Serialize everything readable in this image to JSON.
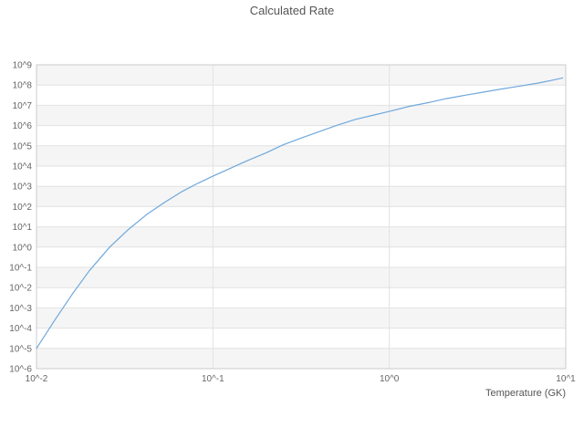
{
  "chart_data": {
    "type": "line",
    "title": "Calculated Rate",
    "xlabel": "Temperature (GK)",
    "ylabel": "",
    "x_scale": "log",
    "y_scale": "log",
    "xlim": [
      0.01,
      10
    ],
    "ylim_exp": [
      -6,
      9
    ],
    "grid": true,
    "legend": "none",
    "x_ticks": [
      {
        "value": 0.01,
        "label": "10^-2"
      },
      {
        "value": 0.1,
        "label": "10^-1"
      },
      {
        "value": 1,
        "label": "10^0"
      },
      {
        "value": 10,
        "label": "10^1"
      }
    ],
    "y_ticks": [
      {
        "exp": 9,
        "label": "10^9"
      },
      {
        "exp": 8,
        "label": "10^8"
      },
      {
        "exp": 7,
        "label": "10^7"
      },
      {
        "exp": 6,
        "label": "10^6"
      },
      {
        "exp": 5,
        "label": "10^5"
      },
      {
        "exp": 4,
        "label": "10^4"
      },
      {
        "exp": 3,
        "label": "10^3"
      },
      {
        "exp": 2,
        "label": "10^2"
      },
      {
        "exp": 1,
        "label": "10^1"
      },
      {
        "exp": 0,
        "label": "10^0"
      },
      {
        "exp": -1,
        "label": "10^-1"
      },
      {
        "exp": -2,
        "label": "10^-2"
      },
      {
        "exp": -3,
        "label": "10^-3"
      },
      {
        "exp": -4,
        "label": "10^-4"
      },
      {
        "exp": -5,
        "label": "10^-5"
      },
      {
        "exp": -6,
        "label": "10^-6"
      }
    ],
    "colors": {
      "line": "#6fa8dc",
      "grid": "#e2e2e2",
      "band": "#f5f5f5",
      "border": "#cccccc",
      "tick_text": "#666666",
      "title_text": "#555555"
    },
    "series": [
      {
        "name": "Calculated Rate",
        "points_x_logy": [
          [
            0.01,
            -5.0
          ],
          [
            0.0127,
            -3.6
          ],
          [
            0.016,
            -2.3
          ],
          [
            0.02,
            -1.15
          ],
          [
            0.026,
            0.0
          ],
          [
            0.033,
            0.85
          ],
          [
            0.042,
            1.6
          ],
          [
            0.053,
            2.2
          ],
          [
            0.067,
            2.75
          ],
          [
            0.082,
            3.15
          ],
          [
            0.1,
            3.5
          ],
          [
            0.13,
            3.95
          ],
          [
            0.16,
            4.3
          ],
          [
            0.2,
            4.65
          ],
          [
            0.25,
            5.05
          ],
          [
            0.32,
            5.4
          ],
          [
            0.4,
            5.7
          ],
          [
            0.5,
            6.0
          ],
          [
            0.64,
            6.3
          ],
          [
            0.8,
            6.5
          ],
          [
            1.0,
            6.7
          ],
          [
            1.3,
            6.95
          ],
          [
            1.7,
            7.15
          ],
          [
            2.1,
            7.33
          ],
          [
            2.7,
            7.5
          ],
          [
            3.4,
            7.65
          ],
          [
            4.3,
            7.8
          ],
          [
            5.5,
            7.95
          ],
          [
            7.0,
            8.1
          ],
          [
            8.5,
            8.25
          ],
          [
            9.6,
            8.35
          ]
        ]
      }
    ]
  }
}
